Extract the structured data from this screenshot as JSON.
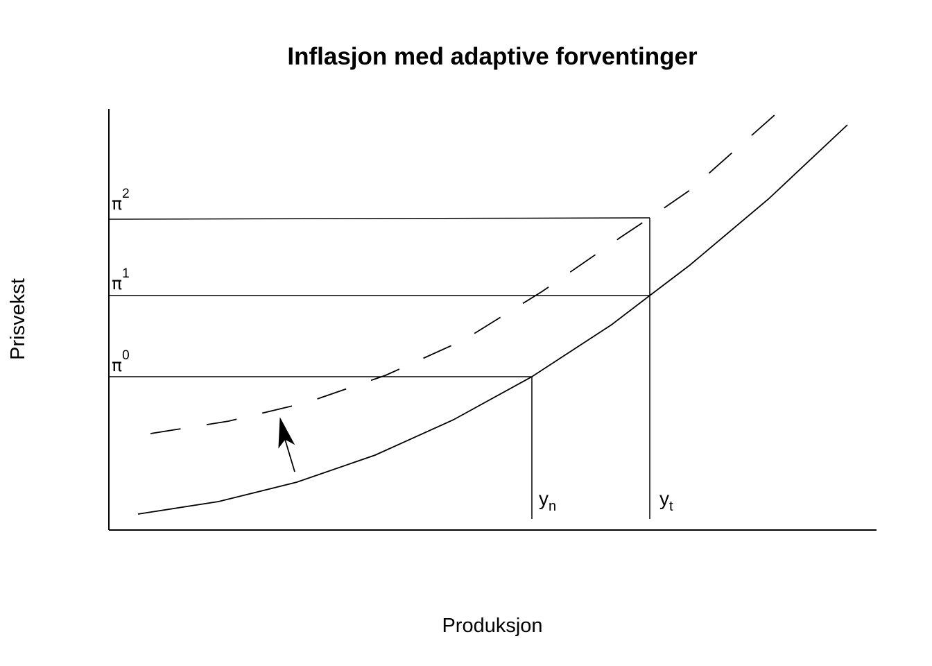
{
  "title": "Inflasjon med adaptive forventinger",
  "xlabel": "Produksjon",
  "ylabel": "Prisvekst",
  "levels": [
    {
      "symbol": "π",
      "sup": "0"
    },
    {
      "symbol": "π",
      "sup": "1"
    },
    {
      "symbol": "π",
      "sup": "2"
    }
  ],
  "output_levels": [
    {
      "base": "y",
      "sub": "n"
    },
    {
      "base": "y",
      "sub": "t"
    }
  ],
  "curves": [
    {
      "style": "solid"
    },
    {
      "style": "dashed"
    }
  ],
  "shift_arrow": {
    "direction": "up"
  }
}
